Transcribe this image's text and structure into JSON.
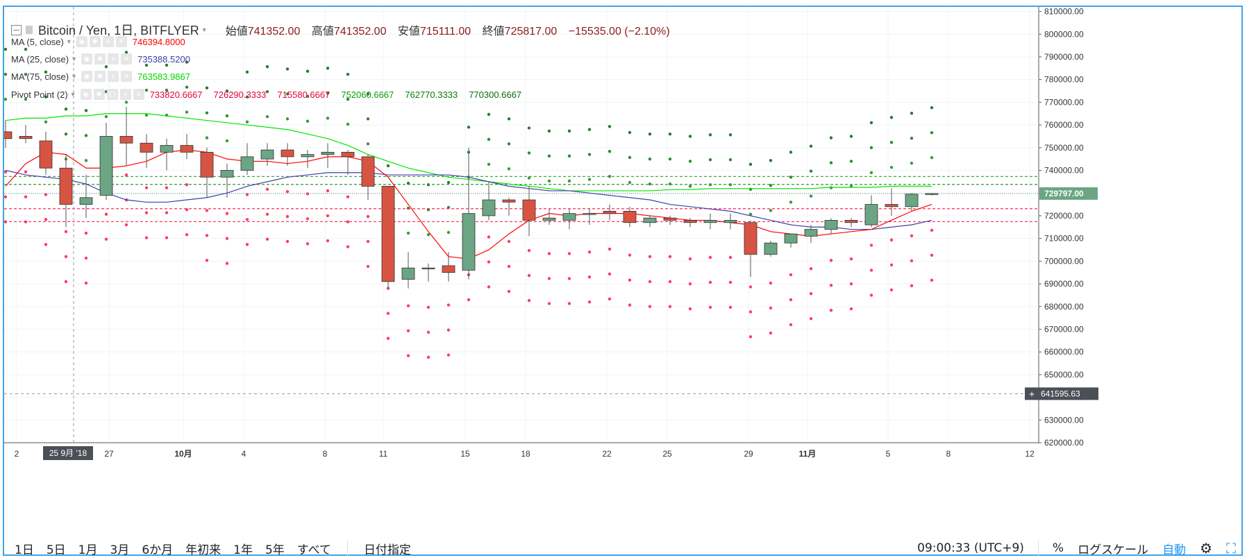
{
  "header": {
    "symbol": "Bitcoin / Yen, 1日, BITFLYER",
    "open_label": "始値",
    "open": "741352.00",
    "high_label": "高値",
    "high": "741352.00",
    "low_label": "安値",
    "low": "715111.00",
    "close_label": "終値",
    "close": "725817.00",
    "change": "−15535.00 (−2.10%)"
  },
  "indicators": {
    "ma5": {
      "label": "MA (5, close)",
      "value": "746394.8000",
      "color": "#ff0000"
    },
    "ma25": {
      "label": "MA (25, close)",
      "value": "735388.5200",
      "color": "#3f3fa8"
    },
    "ma75": {
      "label": "MA (75, close)",
      "value": "763583.9867",
      "color": "#00e600"
    },
    "pivot": {
      "label": "Pivot Point (2)",
      "values": [
        "733820.6667",
        "726290.3333",
        "715580.6667",
        "752060.6667",
        "762770.3333",
        "770300.6667"
      ],
      "colors": [
        "#ff0000",
        "#e8003a",
        "#e8003a",
        "#0a9a0a",
        "#0a7a0a",
        "#0a6a0a"
      ]
    }
  },
  "axis": {
    "price_ticks": [
      "810000.00",
      "800000.00",
      "790000.00",
      "780000.00",
      "770000.00",
      "760000.00",
      "750000.00",
      "740000.00",
      "730000.00",
      "720000.00",
      "710000.00",
      "700000.00",
      "690000.00",
      "680000.00",
      "670000.00",
      "660000.00",
      "650000.00",
      "640000.00",
      "630000.00",
      "620000.00"
    ],
    "last_price": "729797.00",
    "crosshair_price": "641595.63",
    "crosshair_date": "25 9月 '18",
    "date_labels": [
      "2",
      "27",
      "10月",
      "4",
      "8",
      "11",
      "15",
      "18",
      "22",
      "25",
      "29",
      "11月",
      "5",
      "8",
      "12"
    ]
  },
  "chart_data": {
    "type": "candlestick",
    "ylim": [
      620000,
      812000
    ],
    "candles": [
      {
        "o": 757000,
        "h": 762000,
        "l": 750000,
        "c": 754000
      },
      {
        "o": 755000,
        "h": 760000,
        "l": 752000,
        "c": 754000
      },
      {
        "o": 753000,
        "h": 757000,
        "l": 738000,
        "c": 741000
      },
      {
        "o": 741000,
        "h": 747000,
        "l": 715000,
        "c": 725000
      },
      {
        "o": 725000,
        "h": 738000,
        "l": 719000,
        "c": 728000
      },
      {
        "o": 729000,
        "h": 761000,
        "l": 727000,
        "c": 755000
      },
      {
        "o": 755000,
        "h": 768000,
        "l": 742000,
        "c": 752000
      },
      {
        "o": 752000,
        "h": 756000,
        "l": 741000,
        "c": 748000
      },
      {
        "o": 748000,
        "h": 754000,
        "l": 740000,
        "c": 751000
      },
      {
        "o": 751000,
        "h": 756000,
        "l": 745000,
        "c": 748000
      },
      {
        "o": 748000,
        "h": 750000,
        "l": 728000,
        "c": 737000
      },
      {
        "o": 737000,
        "h": 743000,
        "l": 728000,
        "c": 740000
      },
      {
        "o": 740000,
        "h": 752000,
        "l": 738000,
        "c": 746000
      },
      {
        "o": 745000,
        "h": 752000,
        "l": 742000,
        "c": 749000
      },
      {
        "o": 749000,
        "h": 752000,
        "l": 742000,
        "c": 746000
      },
      {
        "o": 746000,
        "h": 749000,
        "l": 741000,
        "c": 747000
      },
      {
        "o": 747000,
        "h": 752000,
        "l": 741000,
        "c": 748000
      },
      {
        "o": 748000,
        "h": 749000,
        "l": 738000,
        "c": 746000
      },
      {
        "o": 746000,
        "h": 747000,
        "l": 727000,
        "c": 733000
      },
      {
        "o": 733000,
        "h": 733000,
        "l": 688000,
        "c": 691000
      },
      {
        "o": 692000,
        "h": 704000,
        "l": 688000,
        "c": 697000
      },
      {
        "o": 697000,
        "h": 699000,
        "l": 691000,
        "c": 697000
      },
      {
        "o": 698000,
        "h": 704000,
        "l": 691000,
        "c": 695000
      },
      {
        "o": 696000,
        "h": 750000,
        "l": 692000,
        "c": 721000
      },
      {
        "o": 720000,
        "h": 735000,
        "l": 718000,
        "c": 727000
      },
      {
        "o": 727000,
        "h": 728000,
        "l": 720000,
        "c": 726000
      },
      {
        "o": 727000,
        "h": 733000,
        "l": 711000,
        "c": 718000
      },
      {
        "o": 718000,
        "h": 723000,
        "l": 716000,
        "c": 719000
      },
      {
        "o": 718000,
        "h": 723000,
        "l": 714000,
        "c": 721000
      },
      {
        "o": 721000,
        "h": 723000,
        "l": 716000,
        "c": 721000
      },
      {
        "o": 722000,
        "h": 725000,
        "l": 718000,
        "c": 721000
      },
      {
        "o": 722000,
        "h": 724000,
        "l": 715000,
        "c": 717000
      },
      {
        "o": 717000,
        "h": 720000,
        "l": 715000,
        "c": 719000
      },
      {
        "o": 719000,
        "h": 720000,
        "l": 716000,
        "c": 718000
      },
      {
        "o": 718000,
        "h": 719000,
        "l": 715000,
        "c": 717000
      },
      {
        "o": 717000,
        "h": 721000,
        "l": 714000,
        "c": 718000
      },
      {
        "o": 717000,
        "h": 721000,
        "l": 714000,
        "c": 718000
      },
      {
        "o": 717000,
        "h": 718000,
        "l": 693000,
        "c": 703000
      },
      {
        "o": 703000,
        "h": 709000,
        "l": 702000,
        "c": 708000
      },
      {
        "o": 708000,
        "h": 712000,
        "l": 706000,
        "c": 712000
      },
      {
        "o": 711000,
        "h": 716000,
        "l": 708000,
        "c": 714000
      },
      {
        "o": 714000,
        "h": 719000,
        "l": 712000,
        "c": 718000
      },
      {
        "o": 718000,
        "h": 719000,
        "l": 715000,
        "c": 717000
      },
      {
        "o": 716000,
        "h": 729000,
        "l": 715000,
        "c": 725000
      },
      {
        "o": 725000,
        "h": 732000,
        "l": 720000,
        "c": 724000
      },
      {
        "o": 724000,
        "h": 730000,
        "l": 722000,
        "c": 729500
      },
      {
        "o": 729500,
        "h": 730000,
        "l": 729000,
        "c": 729797
      }
    ],
    "ma5": [
      733000,
      743000,
      748000,
      747000,
      741000,
      741000,
      742000,
      744000,
      748000,
      749000,
      748000,
      745000,
      744000,
      744000,
      743000,
      744000,
      746000,
      746000,
      744000,
      737000,
      725000,
      713000,
      702000,
      701000,
      705000,
      712000,
      718000,
      721000,
      720000,
      721000,
      721000,
      721000,
      720000,
      719000,
      718000,
      718000,
      717000,
      716000,
      713000,
      712000,
      711000,
      712000,
      713000,
      714000,
      718000,
      722000,
      725000
    ],
    "ma25": [
      740000,
      738000,
      737000,
      736000,
      734000,
      730000,
      727000,
      726000,
      726000,
      727000,
      728000,
      730000,
      733000,
      735000,
      737000,
      738000,
      739000,
      739000,
      739000,
      738000,
      738000,
      738000,
      738000,
      737000,
      735000,
      733000,
      732000,
      731000,
      731000,
      730000,
      729000,
      728000,
      727000,
      725000,
      724000,
      723000,
      722000,
      720000,
      718000,
      716000,
      715000,
      715000,
      714000,
      714000,
      715000,
      716000,
      718000
    ],
    "ma75": [
      762000,
      763000,
      763000,
      764000,
      764000,
      765000,
      765000,
      765000,
      764000,
      763000,
      762000,
      761000,
      760000,
      759000,
      758000,
      756000,
      754000,
      751000,
      747000,
      744000,
      741000,
      739000,
      737000,
      736000,
      735000,
      734000,
      733000,
      732000,
      731000,
      731000,
      731000,
      731000,
      731000,
      731500,
      731500,
      732000,
      732000,
      732000,
      732000,
      732000,
      732000,
      732500,
      732500,
      732500,
      733000,
      733000,
      733000
    ],
    "pivot_lines": [
      733820.6667,
      737000,
      726290.3333,
      721000
    ],
    "dot_offsets": [
      -38000,
      -27000,
      -16000,
      16000,
      27000,
      38000
    ]
  }
}
